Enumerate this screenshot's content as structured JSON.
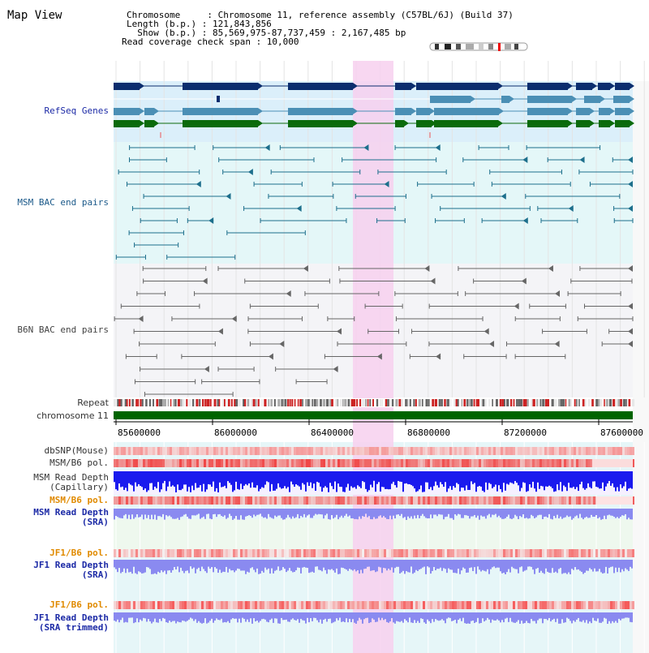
{
  "page": {
    "title": "Map View",
    "info_lines": [
      "Chromosome     : Chromosome 11, reference assembly (C57BL/6J) (Build 37)",
      "Length (b.p.) : 121,843,856",
      "  Show (b.p.) : 85,569,975-87,737,459 : 2,167,485 bp",
      "Read coverage check span : 10,000"
    ]
  },
  "tracks": {
    "refseq": "RefSeq Genes",
    "msm_bac": "MSM BAC end pairs",
    "b6n_bac": "B6N BAC end pairs",
    "repeat": "Repeat",
    "chromosome": "chromosome 11",
    "dbsnp": "dbSNP(Mouse)",
    "msm_b6_pol_1": "MSM/B6 pol.",
    "msm_depth_cap_1": "MSM Read Depth",
    "msm_depth_cap_2": "(Capillary)",
    "msm_b6_pol_2": "MSM/B6 pol.",
    "msm_depth_sra_1": "MSM Read Depth",
    "msm_depth_sra_2": "(SRA)",
    "jf1_b6_pol_1": "JF1/B6 pol.",
    "jf1_depth_sra_1": "JF1 Read Depth",
    "jf1_depth_sra_2": "(SRA)",
    "jf1_b6_pol_2": "JF1/B6 pol.",
    "jf1_depth_trim_1": "JF1 Read Depth",
    "jf1_depth_trim_2": "(SRA trimmed)"
  },
  "axis": {
    "ticks": [
      "85600000",
      "86000000",
      "86400000",
      "86800000",
      "87200000",
      "87600000"
    ]
  },
  "colors": {
    "highlight": "#f7d0ef",
    "refseq_bg": "#dbeffa",
    "msm_bg": "#e4f7f8",
    "b6n_bg": "#f4f4f7",
    "refseq_dark": "#0b2d6e",
    "refseq_mid": "#4b8fb5",
    "refseq_green": "#0b6b0b",
    "msm_line": "#1d6f8c",
    "b6n_line": "#666666",
    "chrom_bar": "#006400",
    "depth_blue": "#1a1aee",
    "depth_light": "#8a8af0",
    "pol_red": "#e83a3a"
  }
}
